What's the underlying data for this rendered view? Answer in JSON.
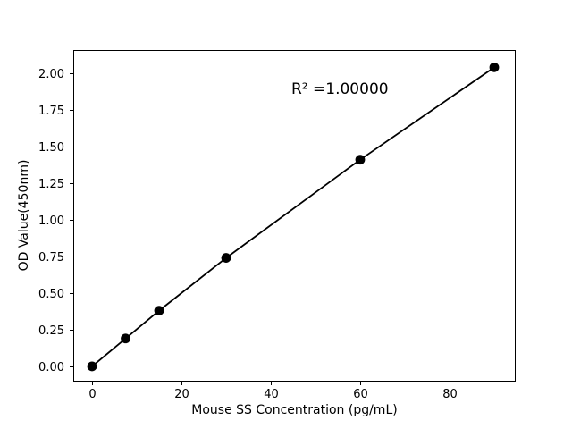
{
  "figure": {
    "background_color": "#ffffff",
    "frame_color": "#000000"
  },
  "chart_data": {
    "type": "scatter",
    "x": [
      0,
      7.5,
      15,
      30,
      60,
      90
    ],
    "y": [
      0.0,
      0.19,
      0.38,
      0.74,
      1.41,
      2.04
    ],
    "title": "",
    "xlabel": "Mouse SS Concentration (pg/mL)",
    "ylabel": "OD Value(450nm)",
    "annotation": "R² =1.00000",
    "xlim": [
      -4.2,
      94.8
    ],
    "ylim": [
      -0.104,
      2.158
    ],
    "xticks": [
      0,
      20,
      40,
      60,
      80
    ],
    "xtick_labels": [
      "0",
      "20",
      "40",
      "60",
      "80"
    ],
    "yticks": [
      0,
      0.25,
      0.5,
      0.75,
      1.0,
      1.25,
      1.5,
      1.75,
      2.0
    ],
    "ytick_labels": [
      "0.00",
      "0.25",
      "0.50",
      "0.75",
      "1.00",
      "1.25",
      "1.50",
      "1.75",
      "2.00"
    ],
    "grid": false,
    "legend": "none",
    "line_color": "#000000",
    "marker_color": "#000000"
  }
}
